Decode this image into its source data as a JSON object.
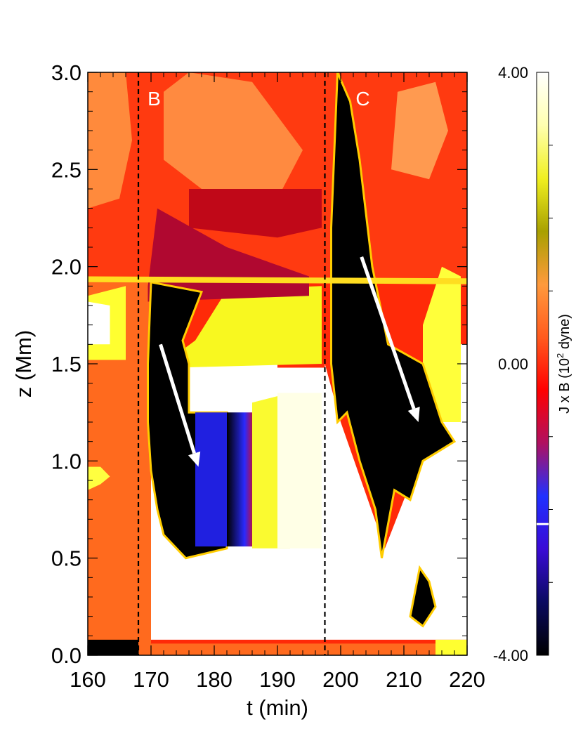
{
  "chart_data": {
    "type": "heatmap",
    "xlabel": "t (min)",
    "ylabel": "z (Mm)",
    "xlim": [
      160,
      220
    ],
    "ylim": [
      0.0,
      3.0
    ],
    "x_ticks": [
      "160",
      "170",
      "180",
      "190",
      "200",
      "210",
      "220"
    ],
    "y_ticks": [
      "0.0",
      "0.5",
      "1.0",
      "1.5",
      "2.0",
      "2.5",
      "3.0"
    ],
    "colorbar": {
      "label": "J x B (10",
      "label_sup": "2",
      "label_end": " dyne)",
      "min": -4.0,
      "max": 4.0,
      "tick_labels": [
        "4.00",
        "0.00",
        "-4.00"
      ],
      "tick_values": [
        4.0,
        0.0,
        -4.0
      ],
      "marker_value": -2.2,
      "colors": [
        "#000000",
        "#0a0a60",
        "#3a0ad6",
        "#2030ff",
        "#b01060",
        "#ff0000",
        "#ff5a1e",
        "#ff9a3c",
        "#a8a000",
        "#f0f020",
        "#ffffb0",
        "#ffffff"
      ]
    },
    "vlines": [
      {
        "t": 168.0,
        "style": "dashed"
      },
      {
        "t": 197.5,
        "style": "dashed"
      }
    ],
    "annotations": [
      {
        "text": "B",
        "t": 170.5,
        "z": 2.83
      },
      {
        "text": "C",
        "t": 203.5,
        "z": 2.83
      }
    ],
    "arrows": [
      {
        "t0": 171.5,
        "z0": 1.6,
        "t1": 177.5,
        "z1": 0.97
      },
      {
        "t0": 203.3,
        "z0": 2.05,
        "t1": 212.3,
        "z1": 1.2
      }
    ],
    "regions": [
      {
        "fill": "#ff6a1e",
        "points": [
          [
            160,
            0
          ],
          [
            170,
            0
          ],
          [
            170,
            3
          ],
          [
            160,
            3
          ]
        ]
      },
      {
        "fill": "#ff3a10",
        "points": [
          [
            160,
            1.95
          ],
          [
            220,
            1.9
          ],
          [
            220,
            3
          ],
          [
            160,
            3
          ]
        ]
      },
      {
        "fill": "#ffffff",
        "points": [
          [
            170,
            0.08
          ],
          [
            197.5,
            0.08
          ],
          [
            197.5,
            1.48
          ],
          [
            190,
            1.48
          ],
          [
            190,
            1.5
          ],
          [
            170,
            1.5
          ]
        ]
      },
      {
        "fill": "#f8f820",
        "points": [
          [
            174,
            1.48
          ],
          [
            197,
            1.5
          ],
          [
            197,
            1.9
          ],
          [
            182,
            1.88
          ],
          [
            177,
            1.62
          ],
          [
            172,
            1.5
          ]
        ]
      },
      {
        "fill": "#fafa30",
        "points": [
          [
            186,
            0.55
          ],
          [
            192,
            0.55
          ],
          [
            192,
            1.35
          ],
          [
            186,
            1.3
          ]
        ]
      },
      {
        "fill": "#ffffe6",
        "points": [
          [
            190,
            0.55
          ],
          [
            197,
            0.55
          ],
          [
            197,
            1.35
          ],
          [
            190,
            1.35
          ]
        ]
      },
      {
        "fill": "#ffffff",
        "points": [
          [
            197.5,
            0.08
          ],
          [
            220,
            0.08
          ],
          [
            220,
            1.6
          ],
          [
            217,
            1.6
          ],
          [
            213,
            1.05
          ],
          [
            207,
            0.55
          ],
          [
            200,
            1.2
          ],
          [
            197.5,
            1.5
          ]
        ]
      },
      {
        "fill": "#ffff3a",
        "points": [
          [
            213,
            1.2
          ],
          [
            219,
            1.2
          ],
          [
            219,
            1.95
          ],
          [
            216,
            2.0
          ],
          [
            213,
            1.7
          ]
        ]
      },
      {
        "fill": "#ffff30",
        "points": [
          [
            160,
            1.52
          ],
          [
            166,
            1.52
          ],
          [
            166,
            1.9
          ],
          [
            160,
            1.85
          ]
        ]
      },
      {
        "fill": "#ffffff",
        "points": [
          [
            160,
            1.6
          ],
          [
            163.5,
            1.6
          ],
          [
            163.5,
            1.8
          ],
          [
            160,
            1.82
          ]
        ]
      },
      {
        "fill": "#ff8a3c",
        "points": [
          [
            160,
            2.3
          ],
          [
            165,
            2.35
          ],
          [
            167,
            2.65
          ],
          [
            166,
            3
          ],
          [
            160,
            3
          ]
        ]
      },
      {
        "fill": "#ff8a40",
        "points": [
          [
            172,
            2.55
          ],
          [
            178,
            2.4
          ],
          [
            190,
            2.35
          ],
          [
            194,
            2.6
          ],
          [
            186,
            2.95
          ],
          [
            176,
            3
          ],
          [
            172,
            2.9
          ]
        ]
      },
      {
        "fill": "#c00818",
        "points": [
          [
            176,
            2.2
          ],
          [
            190,
            2.15
          ],
          [
            197,
            2.2
          ],
          [
            197,
            2.4
          ],
          [
            188,
            2.4
          ],
          [
            176,
            2.4
          ]
        ]
      },
      {
        "fill": "#ff9a50",
        "points": [
          [
            208,
            2.5
          ],
          [
            214,
            2.45
          ],
          [
            217,
            2.7
          ],
          [
            215,
            2.95
          ],
          [
            209,
            2.9
          ]
        ]
      },
      {
        "fill": "#b00830",
        "points": [
          [
            169.5,
            1.9
          ],
          [
            171,
            2.3
          ],
          [
            182,
            2.1
          ],
          [
            195,
            1.95
          ],
          [
            195,
            1.85
          ],
          [
            169.5,
            1.82
          ]
        ]
      },
      {
        "fill": "#000000",
        "points": [
          [
            169.5,
            1.5
          ],
          [
            170,
            1.92
          ],
          [
            178,
            1.87
          ],
          [
            175,
            1.62
          ],
          [
            176,
            1.5
          ],
          [
            176,
            1.25
          ],
          [
            182,
            1.25
          ],
          [
            182,
            0.55
          ],
          [
            175.5,
            0.5
          ],
          [
            172,
            0.62
          ],
          [
            171,
            0.75
          ],
          [
            170,
            0.95
          ],
          [
            169.5,
            1.2
          ]
        ]
      },
      {
        "fill": "#2020e0",
        "points": [
          [
            177,
            0.56
          ],
          [
            182,
            0.56
          ],
          [
            182,
            1.25
          ],
          [
            177,
            1.25
          ]
        ]
      },
      {
        "fill": "#a01040",
        "points": [
          [
            182,
            0.56
          ],
          [
            186,
            0.56
          ],
          [
            186,
            1.25
          ],
          [
            182,
            1.25
          ]
        ]
      },
      {
        "fill": "#000000",
        "points": [
          [
            198.5,
            1.5
          ],
          [
            198.5,
            2.2
          ],
          [
            199.5,
            3
          ],
          [
            201.5,
            2.85
          ],
          [
            203,
            2.55
          ],
          [
            205,
            2.0
          ],
          [
            207.5,
            1.6
          ],
          [
            213,
            1.5
          ],
          [
            216,
            1.2
          ],
          [
            218,
            1.1
          ],
          [
            213,
            1.0
          ],
          [
            211,
            0.8
          ],
          [
            208.5,
            0.85
          ],
          [
            206.5,
            0.5
          ],
          [
            205.5,
            0.75
          ],
          [
            203,
            1.0
          ],
          [
            201,
            1.25
          ],
          [
            199.5,
            1.2
          ]
        ]
      },
      {
        "fill": "#ffdd20",
        "points": [
          [
            160,
            1.92
          ],
          [
            220,
            1.91
          ],
          [
            220,
            1.94
          ],
          [
            160,
            1.95
          ]
        ]
      },
      {
        "fill": "#000000",
        "points": [
          [
            211,
            0.2
          ],
          [
            212.5,
            0.45
          ],
          [
            214,
            0.38
          ],
          [
            215,
            0.25
          ],
          [
            213,
            0.15
          ]
        ]
      },
      {
        "fill": "#ff6a1e",
        "points": [
          [
            160,
            0
          ],
          [
            215,
            0
          ],
          [
            215,
            0.06
          ],
          [
            160,
            0.06
          ]
        ]
      },
      {
        "fill": "#ffff30",
        "points": [
          [
            215,
            0
          ],
          [
            220,
            0
          ],
          [
            220,
            0.08
          ],
          [
            215,
            0.08
          ]
        ]
      },
      {
        "fill": "#000000",
        "points": [
          [
            160,
            0
          ],
          [
            168,
            0
          ],
          [
            168,
            0.08
          ],
          [
            160,
            0.08
          ]
        ]
      },
      {
        "fill": "#ffff40",
        "points": [
          [
            160,
            0.85
          ],
          [
            162,
            0.88
          ],
          [
            163.5,
            0.92
          ],
          [
            162,
            0.97
          ],
          [
            160,
            0.97
          ]
        ]
      }
    ]
  }
}
